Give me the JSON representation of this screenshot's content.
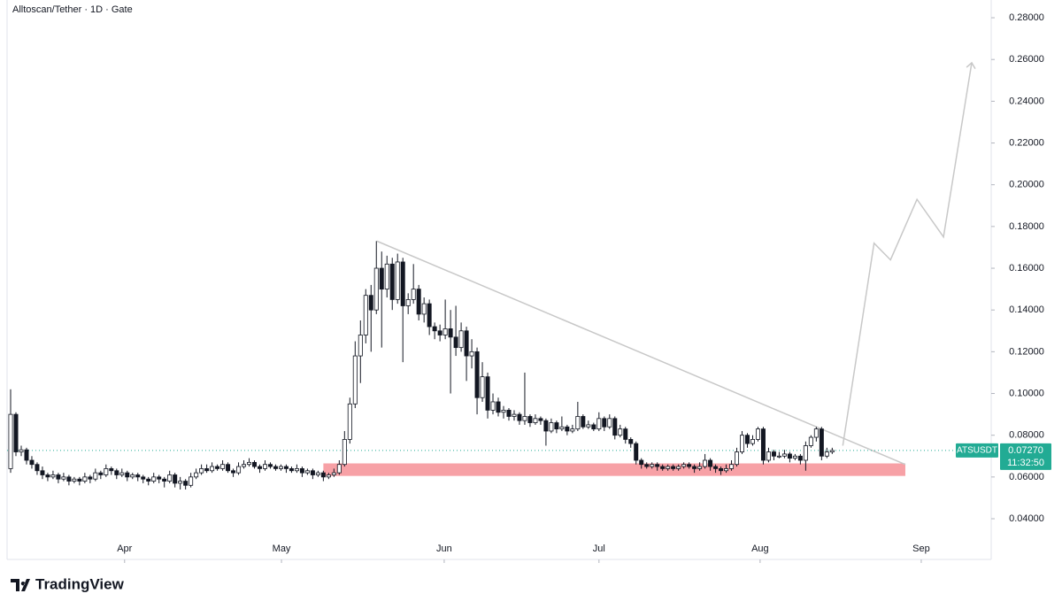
{
  "chart_data": {
    "type": "candlestick",
    "title": "Alltoscan/Tether · 1D · Gate",
    "brand": "TradingView",
    "symbol": "ATSUSDT",
    "countdown": "11:32:50",
    "last_price": {
      "value": 0.0727,
      "label": "0.07270"
    },
    "up_color": "#ffffff",
    "down_color": "#131722",
    "wick_color": "#131722",
    "price_line_color": "#22ab94",
    "ylim": [
      0.0205,
      0.2885
    ],
    "yticks": [
      {
        "value": 0.04,
        "label": "0.04000"
      },
      {
        "value": 0.06,
        "label": "0.06000"
      },
      {
        "value": 0.08,
        "label": "0.08000"
      },
      {
        "value": 0.1,
        "label": "0.10000"
      },
      {
        "value": 0.12,
        "label": "0.12000"
      },
      {
        "value": 0.14,
        "label": "0.14000"
      },
      {
        "value": 0.16,
        "label": "0.16000"
      },
      {
        "value": 0.18,
        "label": "0.18000"
      },
      {
        "value": 0.2,
        "label": "0.20000"
      },
      {
        "value": 0.22,
        "label": "0.22000"
      },
      {
        "value": 0.24,
        "label": "0.24000"
      },
      {
        "value": 0.26,
        "label": "0.26000"
      },
      {
        "value": 0.28,
        "label": "0.28000"
      }
    ],
    "xlim": [
      -0.67,
      185
    ],
    "xticks": [
      {
        "value": 21.5,
        "label": "Apr"
      },
      {
        "value": 51.1,
        "label": "May"
      },
      {
        "value": 81.8,
        "label": "Jun"
      },
      {
        "value": 111.0,
        "label": "Jul"
      },
      {
        "value": 141.4,
        "label": "Aug"
      },
      {
        "value": 171.8,
        "label": "Sep"
      }
    ],
    "zone": {
      "color": "#f7a1a6",
      "x": [
        59,
        168.8
      ],
      "y": [
        0.0605,
        0.0665
      ]
    },
    "trendline": {
      "color": "#c8c8c8",
      "x": [
        69.1,
        168.8
      ],
      "y": [
        0.173,
        0.066
      ]
    },
    "projection": {
      "color": "#c8c8c8",
      "x": [
        157,
        162.9,
        166,
        171,
        176,
        181.3
      ],
      "y": [
        0.075,
        0.172,
        0.164,
        0.193,
        0.175,
        0.258
      ]
    },
    "ohlc": [
      [
        0.064,
        0.102,
        0.062,
        0.09
      ],
      [
        0.09,
        0.091,
        0.07,
        0.072
      ],
      [
        0.072,
        0.075,
        0.07,
        0.073
      ],
      [
        0.073,
        0.074,
        0.066,
        0.068
      ],
      [
        0.068,
        0.07,
        0.064,
        0.066
      ],
      [
        0.066,
        0.067,
        0.061,
        0.063
      ],
      [
        0.063,
        0.065,
        0.059,
        0.061
      ],
      [
        0.061,
        0.062,
        0.058,
        0.06
      ],
      [
        0.06,
        0.063,
        0.059,
        0.061
      ],
      [
        0.061,
        0.062,
        0.057,
        0.059
      ],
      [
        0.059,
        0.062,
        0.058,
        0.06
      ],
      [
        0.06,
        0.061,
        0.056,
        0.058
      ],
      [
        0.058,
        0.06,
        0.057,
        0.059
      ],
      [
        0.059,
        0.06,
        0.056,
        0.058
      ],
      [
        0.058,
        0.062,
        0.057,
        0.06
      ],
      [
        0.06,
        0.061,
        0.057,
        0.059
      ],
      [
        0.059,
        0.064,
        0.058,
        0.062
      ],
      [
        0.062,
        0.063,
        0.059,
        0.061
      ],
      [
        0.061,
        0.066,
        0.06,
        0.064
      ],
      [
        0.064,
        0.065,
        0.061,
        0.063
      ],
      [
        0.063,
        0.064,
        0.059,
        0.061
      ],
      [
        0.061,
        0.064,
        0.06,
        0.062
      ],
      [
        0.062,
        0.063,
        0.058,
        0.06
      ],
      [
        0.06,
        0.062,
        0.059,
        0.061
      ],
      [
        0.061,
        0.062,
        0.058,
        0.06
      ],
      [
        0.06,
        0.061,
        0.057,
        0.059
      ],
      [
        0.059,
        0.06,
        0.056,
        0.058
      ],
      [
        0.058,
        0.062,
        0.057,
        0.06
      ],
      [
        0.06,
        0.061,
        0.057,
        0.059
      ],
      [
        0.059,
        0.06,
        0.055,
        0.058
      ],
      [
        0.058,
        0.063,
        0.057,
        0.061
      ],
      [
        0.061,
        0.062,
        0.055,
        0.057
      ],
      [
        0.057,
        0.06,
        0.054,
        0.058
      ],
      [
        0.058,
        0.059,
        0.054,
        0.056
      ],
      [
        0.056,
        0.062,
        0.055,
        0.06
      ],
      [
        0.06,
        0.064,
        0.059,
        0.062
      ],
      [
        0.062,
        0.066,
        0.061,
        0.064
      ],
      [
        0.064,
        0.066,
        0.062,
        0.063
      ],
      [
        0.063,
        0.067,
        0.062,
        0.065
      ],
      [
        0.065,
        0.066,
        0.063,
        0.064
      ],
      [
        0.064,
        0.068,
        0.063,
        0.066
      ],
      [
        0.066,
        0.067,
        0.062,
        0.063
      ],
      [
        0.063,
        0.064,
        0.06,
        0.062
      ],
      [
        0.062,
        0.067,
        0.061,
        0.065
      ],
      [
        0.065,
        0.068,
        0.064,
        0.066
      ],
      [
        0.066,
        0.069,
        0.065,
        0.067
      ],
      [
        0.067,
        0.068,
        0.064,
        0.065
      ],
      [
        0.065,
        0.066,
        0.062,
        0.064
      ],
      [
        0.064,
        0.068,
        0.063,
        0.066
      ],
      [
        0.066,
        0.067,
        0.064,
        0.065
      ],
      [
        0.065,
        0.066,
        0.063,
        0.064
      ],
      [
        0.064,
        0.066,
        0.063,
        0.065
      ],
      [
        0.065,
        0.066,
        0.062,
        0.064
      ],
      [
        0.064,
        0.065,
        0.062,
        0.063
      ],
      [
        0.063,
        0.066,
        0.062,
        0.064
      ],
      [
        0.064,
        0.065,
        0.06,
        0.062
      ],
      [
        0.062,
        0.064,
        0.061,
        0.063
      ],
      [
        0.063,
        0.064,
        0.059,
        0.061
      ],
      [
        0.061,
        0.063,
        0.06,
        0.062
      ],
      [
        0.062,
        0.063,
        0.058,
        0.06
      ],
      [
        0.06,
        0.062,
        0.059,
        0.061
      ],
      [
        0.061,
        0.064,
        0.06,
        0.062
      ],
      [
        0.062,
        0.068,
        0.061,
        0.066
      ],
      [
        0.066,
        0.082,
        0.065,
        0.078
      ],
      [
        0.078,
        0.098,
        0.076,
        0.095
      ],
      [
        0.095,
        0.125,
        0.093,
        0.118
      ],
      [
        0.118,
        0.135,
        0.105,
        0.128
      ],
      [
        0.128,
        0.15,
        0.124,
        0.147
      ],
      [
        0.147,
        0.152,
        0.12,
        0.14
      ],
      [
        0.14,
        0.173,
        0.138,
        0.16
      ],
      [
        0.16,
        0.168,
        0.122,
        0.15
      ],
      [
        0.15,
        0.166,
        0.146,
        0.162
      ],
      [
        0.162,
        0.165,
        0.14,
        0.145
      ],
      [
        0.145,
        0.167,
        0.143,
        0.163
      ],
      [
        0.163,
        0.165,
        0.115,
        0.142
      ],
      [
        0.142,
        0.148,
        0.138,
        0.145
      ],
      [
        0.145,
        0.162,
        0.143,
        0.15
      ],
      [
        0.15,
        0.152,
        0.135,
        0.138
      ],
      [
        0.138,
        0.146,
        0.134,
        0.143
      ],
      [
        0.143,
        0.145,
        0.128,
        0.132
      ],
      [
        0.132,
        0.134,
        0.126,
        0.13
      ],
      [
        0.13,
        0.133,
        0.125,
        0.128
      ],
      [
        0.128,
        0.145,
        0.126,
        0.131
      ],
      [
        0.131,
        0.14,
        0.1,
        0.127
      ],
      [
        0.127,
        0.142,
        0.118,
        0.122
      ],
      [
        0.122,
        0.134,
        0.12,
        0.13
      ],
      [
        0.13,
        0.132,
        0.106,
        0.118
      ],
      [
        0.118,
        0.126,
        0.112,
        0.12
      ],
      [
        0.12,
        0.122,
        0.09,
        0.098
      ],
      [
        0.098,
        0.115,
        0.096,
        0.108
      ],
      [
        0.108,
        0.11,
        0.088,
        0.092
      ],
      [
        0.092,
        0.1,
        0.09,
        0.096
      ],
      [
        0.096,
        0.098,
        0.089,
        0.091
      ],
      [
        0.091,
        0.094,
        0.088,
        0.092
      ],
      [
        0.092,
        0.093,
        0.087,
        0.089
      ],
      [
        0.089,
        0.092,
        0.087,
        0.09
      ],
      [
        0.09,
        0.091,
        0.085,
        0.087
      ],
      [
        0.087,
        0.11,
        0.085,
        0.089
      ],
      [
        0.089,
        0.09,
        0.084,
        0.086
      ],
      [
        0.086,
        0.09,
        0.085,
        0.088
      ],
      [
        0.088,
        0.089,
        0.085,
        0.087
      ],
      [
        0.087,
        0.088,
        0.075,
        0.082
      ],
      [
        0.082,
        0.088,
        0.081,
        0.086
      ],
      [
        0.086,
        0.087,
        0.081,
        0.083
      ],
      [
        0.083,
        0.089,
        0.082,
        0.084
      ],
      [
        0.084,
        0.085,
        0.08,
        0.082
      ],
      [
        0.082,
        0.085,
        0.081,
        0.083
      ],
      [
        0.083,
        0.096,
        0.082,
        0.089
      ],
      [
        0.089,
        0.09,
        0.083,
        0.084
      ],
      [
        0.084,
        0.087,
        0.083,
        0.085
      ],
      [
        0.085,
        0.086,
        0.082,
        0.083
      ],
      [
        0.083,
        0.091,
        0.082,
        0.088
      ],
      [
        0.088,
        0.089,
        0.082,
        0.084
      ],
      [
        0.084,
        0.09,
        0.083,
        0.088
      ],
      [
        0.088,
        0.089,
        0.078,
        0.08
      ],
      [
        0.08,
        0.085,
        0.079,
        0.083
      ],
      [
        0.083,
        0.084,
        0.076,
        0.078
      ],
      [
        0.078,
        0.079,
        0.074,
        0.076
      ],
      [
        0.076,
        0.077,
        0.066,
        0.068
      ],
      [
        0.068,
        0.069,
        0.064,
        0.066
      ],
      [
        0.066,
        0.067,
        0.064,
        0.065
      ],
      [
        0.065,
        0.067,
        0.064,
        0.066
      ],
      [
        0.066,
        0.067,
        0.063,
        0.065
      ],
      [
        0.065,
        0.066,
        0.063,
        0.064
      ],
      [
        0.064,
        0.066,
        0.063,
        0.065
      ],
      [
        0.065,
        0.066,
        0.063,
        0.064
      ],
      [
        0.064,
        0.066,
        0.063,
        0.065
      ],
      [
        0.065,
        0.067,
        0.064,
        0.066
      ],
      [
        0.066,
        0.067,
        0.064,
        0.065
      ],
      [
        0.065,
        0.066,
        0.062,
        0.064
      ],
      [
        0.064,
        0.067,
        0.063,
        0.065
      ],
      [
        0.065,
        0.071,
        0.064,
        0.068
      ],
      [
        0.068,
        0.069,
        0.063,
        0.065
      ],
      [
        0.065,
        0.066,
        0.062,
        0.064
      ],
      [
        0.064,
        0.065,
        0.061,
        0.063
      ],
      [
        0.063,
        0.066,
        0.062,
        0.064
      ],
      [
        0.064,
        0.068,
        0.063,
        0.066
      ],
      [
        0.066,
        0.074,
        0.065,
        0.072
      ],
      [
        0.072,
        0.082,
        0.071,
        0.08
      ],
      [
        0.08,
        0.081,
        0.074,
        0.076
      ],
      [
        0.076,
        0.08,
        0.075,
        0.078
      ],
      [
        0.078,
        0.084,
        0.077,
        0.083
      ],
      [
        0.083,
        0.084,
        0.066,
        0.068
      ],
      [
        0.068,
        0.074,
        0.067,
        0.072
      ],
      [
        0.072,
        0.073,
        0.068,
        0.07
      ],
      [
        0.07,
        0.072,
        0.069,
        0.07
      ],
      [
        0.07,
        0.073,
        0.069,
        0.071
      ],
      [
        0.071,
        0.072,
        0.067,
        0.069
      ],
      [
        0.069,
        0.071,
        0.068,
        0.07
      ],
      [
        0.07,
        0.071,
        0.066,
        0.068
      ],
      [
        0.068,
        0.077,
        0.063,
        0.075
      ],
      [
        0.075,
        0.08,
        0.074,
        0.079
      ],
      [
        0.079,
        0.084,
        0.077,
        0.083
      ],
      [
        0.083,
        0.084,
        0.068,
        0.07
      ],
      [
        0.07,
        0.074,
        0.069,
        0.072
      ],
      [
        0.072,
        0.074,
        0.071,
        0.0727
      ]
    ]
  }
}
